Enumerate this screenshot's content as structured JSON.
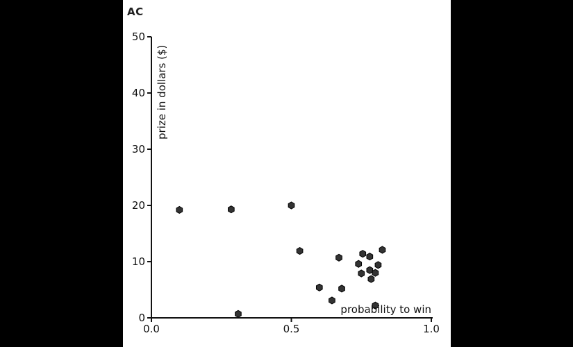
{
  "chart_data": {
    "type": "scatter",
    "title": "AC",
    "xlabel": "probability to win",
    "ylabel": "prize in dollars ($)",
    "xlim": [
      0,
      1
    ],
    "ylim": [
      0,
      50
    ],
    "xticks": [
      0,
      0.5,
      1
    ],
    "xtick_labels": [
      "0.0",
      "0.5",
      "1.0"
    ],
    "yticks": [
      0,
      10,
      20,
      30,
      40,
      50
    ],
    "ytick_labels": [
      "0",
      "10",
      "20",
      "30",
      "40",
      "50"
    ],
    "grid": false,
    "marker_color": "#333333",
    "points": [
      {
        "x": 0.1,
        "y": 19.2
      },
      {
        "x": 0.285,
        "y": 19.3
      },
      {
        "x": 0.31,
        "y": 0.7
      },
      {
        "x": 0.5,
        "y": 20.0
      },
      {
        "x": 0.53,
        "y": 11.9
      },
      {
        "x": 0.6,
        "y": 5.4
      },
      {
        "x": 0.645,
        "y": 3.1
      },
      {
        "x": 0.67,
        "y": 10.7
      },
      {
        "x": 0.68,
        "y": 5.2
      },
      {
        "x": 0.74,
        "y": 9.6
      },
      {
        "x": 0.75,
        "y": 7.9
      },
      {
        "x": 0.755,
        "y": 11.4
      },
      {
        "x": 0.78,
        "y": 10.9
      },
      {
        "x": 0.78,
        "y": 8.5
      },
      {
        "x": 0.785,
        "y": 6.9
      },
      {
        "x": 0.8,
        "y": 8.0
      },
      {
        "x": 0.8,
        "y": 2.2
      },
      {
        "x": 0.81,
        "y": 9.4
      },
      {
        "x": 0.825,
        "y": 12.1
      }
    ]
  }
}
